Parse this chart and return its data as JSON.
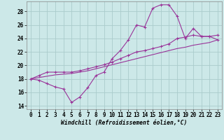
{
  "xlabel": "Windchill (Refroidissement éolien,°C)",
  "xlim": [
    -0.5,
    23.5
  ],
  "ylim": [
    13.5,
    29.5
  ],
  "yticks": [
    14,
    16,
    18,
    20,
    22,
    24,
    26,
    28
  ],
  "xticks": [
    0,
    1,
    2,
    3,
    4,
    5,
    6,
    7,
    8,
    9,
    10,
    11,
    12,
    13,
    14,
    15,
    16,
    17,
    18,
    19,
    20,
    21,
    22,
    23
  ],
  "bg_color": "#cce8e8",
  "grid_color": "#aacccc",
  "line_color": "#993399",
  "line1_y": [
    18.0,
    17.8,
    17.3,
    16.8,
    16.5,
    14.5,
    15.3,
    16.7,
    18.5,
    19.0,
    21.0,
    22.2,
    23.8,
    26.0,
    25.7,
    28.5,
    29.0,
    29.0,
    27.3,
    24.0,
    25.5,
    24.3,
    24.3,
    24.5
  ],
  "line2_y": [
    18.0,
    18.5,
    19.0,
    19.0,
    19.0,
    19.0,
    19.2,
    19.5,
    19.8,
    20.1,
    20.5,
    21.0,
    21.5,
    22.0,
    22.2,
    22.5,
    22.8,
    23.2,
    24.0,
    24.2,
    24.5,
    24.3,
    24.3,
    23.8
  ],
  "line3_y": [
    18.0,
    18.2,
    18.4,
    18.6,
    18.7,
    18.8,
    19.0,
    19.2,
    19.5,
    19.8,
    20.1,
    20.4,
    20.7,
    21.0,
    21.3,
    21.6,
    21.9,
    22.2,
    22.5,
    22.7,
    23.0,
    23.2,
    23.4,
    23.8
  ]
}
